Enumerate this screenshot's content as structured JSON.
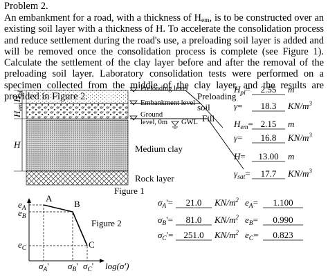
{
  "problem": {
    "title": "Problem 2.",
    "text": [
      "An embankment for a road, with a thickness of H",
      "em",
      ", is to be constructed over an existing soil layer with a thickness of H. To accelerate the consolidation process and reduce settlement during the road's use, a preloading soil layer is added and will be removed once the consolidation process is complete (see Figure 1). Calculate the settlement of the clay layer before and after the removal of the preloading soil layer. Laboratory consolidation tests were performed on a specimen collected from the middle of the clay layer, and the results are provided in Figure 2."
    ]
  },
  "figure1": {
    "caption": "Figure 1",
    "levels": [
      "Preloading level",
      "Embankment level",
      "Ground",
      "level, 0m"
    ],
    "gwl": "GWL",
    "layers": [
      "Medium clay",
      "Rock layer"
    ],
    "fill": "Fill",
    "preloading_soil": [
      "Preloading",
      "soil"
    ],
    "dimensions": [
      {
        "sym": "H",
        "sub": "pl"
      },
      {
        "sym": "H",
        "sub": "em"
      },
      {
        "sym": "H"
      }
    ],
    "params": [
      {
        "sym": "H",
        "sub": "pl",
        "eq": "=",
        "value": "2.55",
        "unit": "m"
      },
      {
        "sym": "γ",
        "eq": "=",
        "value": "18.3",
        "unit": "KN/m",
        "unit_sup": "3"
      },
      {
        "sym": "H",
        "sub": "em",
        "eq": "=",
        "value": "2.15",
        "unit": "m"
      },
      {
        "sym": "γ",
        "eq": "=",
        "value": "16.8",
        "unit": "KN/m",
        "unit_sup": "3"
      },
      {
        "sym": "H",
        "eq": "=",
        "value": "13.00",
        "unit": "m"
      },
      {
        "sym": "γ",
        "sub": "sat",
        "eq": "=",
        "value": "17.7",
        "unit": "KN/m",
        "unit_sup": "3"
      }
    ]
  },
  "figure2": {
    "caption": "Figure 2",
    "points": [
      "A",
      "B",
      "C"
    ],
    "y_labels": [
      {
        "sym": "e",
        "sub": "A"
      },
      {
        "sym": "e",
        "sub": "B"
      },
      {
        "sym": "e",
        "sub": "C"
      }
    ],
    "x_labels": [
      {
        "sym": "σ",
        "sub": "A",
        "prime": "'"
      },
      {
        "sym": "σ",
        "sub": "B",
        "prime": "'"
      },
      {
        "sym": "σ",
        "sub": "C",
        "prime": "'"
      }
    ],
    "x_axis": "log(σ')",
    "results": [
      {
        "stress": {
          "sym": "σ",
          "sub": "A",
          "eq": "'=",
          "value": "21.0",
          "unit": "KN/m",
          "unit_sup": "2"
        },
        "ratio": {
          "sym": "e",
          "sub": "A",
          "eq": "=",
          "value": "1.100"
        }
      },
      {
        "stress": {
          "sym": "σ",
          "sub": "B",
          "eq": "'=",
          "value": "81.0",
          "unit": "KN/m",
          "unit_sup": "2"
        },
        "ratio": {
          "sym": "e",
          "sub": "B",
          "eq": "=",
          "value": "0.990"
        }
      },
      {
        "stress": {
          "sym": "σ",
          "sub": "C",
          "eq": "'=",
          "value": "251.0",
          "unit": "KN/m",
          "unit_sup": "2"
        },
        "ratio": {
          "sym": "e",
          "sub": "C",
          "eq": "=",
          "value": "0.823"
        }
      }
    ]
  }
}
